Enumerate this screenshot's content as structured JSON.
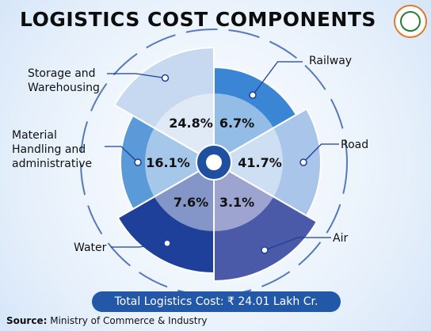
{
  "chart_data": {
    "type": "rose",
    "title": "LOGISTICS COST COMPONENTS",
    "categories": [
      "Railway",
      "Road",
      "Air",
      "Water",
      "Material Handling and administrative",
      "Storage and Warehousing"
    ],
    "values": [
      6.7,
      41.7,
      3.1,
      7.6,
      16.1,
      24.8
    ],
    "value_labels": [
      "6.7%",
      "41.7%",
      "3.1%",
      "7.6%",
      "16.1%",
      "24.8%"
    ],
    "colors": [
      "#3a86d4",
      "#a9c6ea",
      "#4a5aa8",
      "#1e3f9a",
      "#5b9ad8",
      "#c6d9f0"
    ],
    "total": "Total Logistics Cost: ₹ 24.01 Lakh Cr."
  },
  "footer": {
    "label": "Source:",
    "text": "Ministry of Commerce & Industry"
  }
}
